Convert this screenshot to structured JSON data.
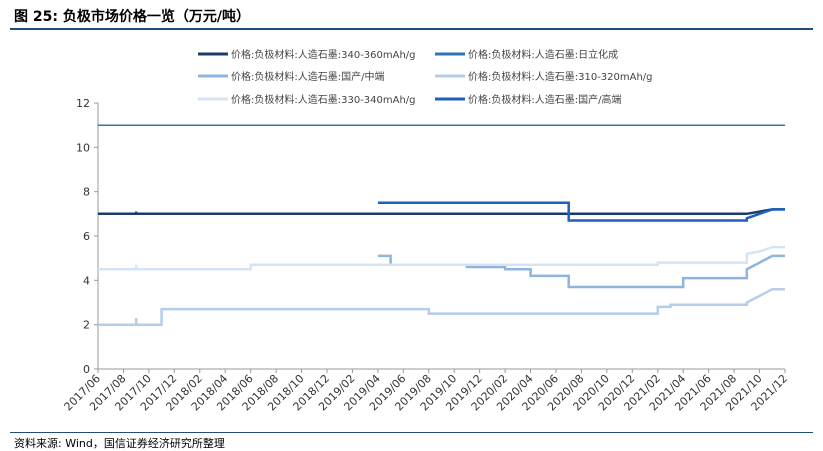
{
  "title": "图 25:  负极市场价格一览（万元/吨）",
  "source": "资料来源: Wind，国信证券经济研究所整理",
  "chart_data": {
    "type": "line",
    "title": "",
    "xlabel": "",
    "ylabel": "",
    "ylim": [
      0,
      12
    ],
    "yticks": [
      0,
      2,
      4,
      6,
      8,
      10,
      12
    ],
    "x_tick_labels": [
      "2017/06",
      "2017/08",
      "2017/10",
      "2017/12",
      "2018/02",
      "2018/04",
      "2018/06",
      "2018/08",
      "2018/10",
      "2018/12",
      "2019/02",
      "2019/04",
      "2019/06",
      "2019/08",
      "2019/10",
      "2019/12",
      "2020/02",
      "2020/04",
      "2020/06",
      "2020/08",
      "2020/10",
      "2020/12",
      "2021/02",
      "2021/04",
      "2021/06",
      "2021/08",
      "2021/10",
      "2021/12"
    ],
    "x_range": [
      "2017/06",
      "2021/12"
    ],
    "grid": false,
    "legend_position": "top",
    "series": [
      {
        "name": "价格:负极材料:人造石墨:340-360mAh/g",
        "color": "#1b3c6b",
        "width": 2.5,
        "points": [
          [
            "2017/06",
            7.0
          ],
          [
            "2017/09",
            7.0
          ],
          [
            "2017/09",
            7.1
          ],
          [
            "2017/09",
            7.0
          ],
          [
            "2021/09",
            7.0
          ],
          [
            "2021/10",
            7.1
          ],
          [
            "2021/11",
            7.2
          ],
          [
            "2021/12",
            7.2
          ]
        ]
      },
      {
        "name": "价格:负极材料:人造石墨:日立化成",
        "color": "#2e75b6",
        "width": 1.5,
        "points": [
          [
            "2017/06",
            11.0
          ],
          [
            "2021/12",
            11.0
          ]
        ]
      },
      {
        "name": "价格:负极材料:人造石墨:国产/中端",
        "color": "#8fb4dd",
        "width": 2.5,
        "points": [
          [
            "2019/04",
            5.1
          ],
          [
            "2019/05",
            5.1
          ],
          [
            "2019/05",
            4.7
          ],
          [
            "2019/11",
            4.7
          ],
          [
            "2019/11",
            4.6
          ],
          [
            "2020/02",
            4.6
          ],
          [
            "2020/02",
            4.5
          ],
          [
            "2020/04",
            4.5
          ],
          [
            "2020/04",
            4.2
          ],
          [
            "2020/07",
            4.2
          ],
          [
            "2020/07",
            3.7
          ],
          [
            "2021/04",
            3.7
          ],
          [
            "2021/04",
            4.1
          ],
          [
            "2021/09",
            4.1
          ],
          [
            "2021/09",
            4.5
          ],
          [
            "2021/10",
            4.8
          ],
          [
            "2021/11",
            5.1
          ],
          [
            "2021/12",
            5.1
          ]
        ]
      },
      {
        "name": "价格:负极材料:人造石墨:310-320mAh/g",
        "color": "#b4cde9",
        "width": 2.5,
        "points": [
          [
            "2017/06",
            2.0
          ],
          [
            "2017/09",
            2.0
          ],
          [
            "2017/09",
            2.3
          ],
          [
            "2017/09",
            2.0
          ],
          [
            "2017/11",
            2.0
          ],
          [
            "2017/11",
            2.7
          ],
          [
            "2019/08",
            2.7
          ],
          [
            "2019/08",
            2.5
          ],
          [
            "2021/02",
            2.5
          ],
          [
            "2021/02",
            2.8
          ],
          [
            "2021/03",
            2.8
          ],
          [
            "2021/03",
            2.9
          ],
          [
            "2021/09",
            2.9
          ],
          [
            "2021/09",
            3.0
          ],
          [
            "2021/10",
            3.3
          ],
          [
            "2021/11",
            3.6
          ],
          [
            "2021/12",
            3.6
          ]
        ]
      },
      {
        "name": "价格:负极材料:人造石墨:330-340mAh/g",
        "color": "#d5e4f4",
        "width": 2.5,
        "points": [
          [
            "2017/06",
            4.5
          ],
          [
            "2017/09",
            4.5
          ],
          [
            "2017/09",
            4.7
          ],
          [
            "2017/09",
            4.5
          ],
          [
            "2018/06",
            4.5
          ],
          [
            "2018/06",
            4.7
          ],
          [
            "2021/02",
            4.7
          ],
          [
            "2021/02",
            4.8
          ],
          [
            "2021/09",
            4.8
          ],
          [
            "2021/09",
            5.2
          ],
          [
            "2021/10",
            5.3
          ],
          [
            "2021/11",
            5.5
          ],
          [
            "2021/12",
            5.5
          ]
        ]
      },
      {
        "name": "价格:负极材料:人造石墨:国产/高端",
        "color": "#1f5fbf",
        "width": 2.5,
        "points": [
          [
            "2019/04",
            7.5
          ],
          [
            "2020/07",
            7.5
          ],
          [
            "2020/07",
            6.7
          ],
          [
            "2021/09",
            6.7
          ],
          [
            "2021/09",
            6.8
          ],
          [
            "2021/10",
            7.0
          ],
          [
            "2021/11",
            7.2
          ],
          [
            "2021/12",
            7.2
          ]
        ]
      }
    ]
  }
}
